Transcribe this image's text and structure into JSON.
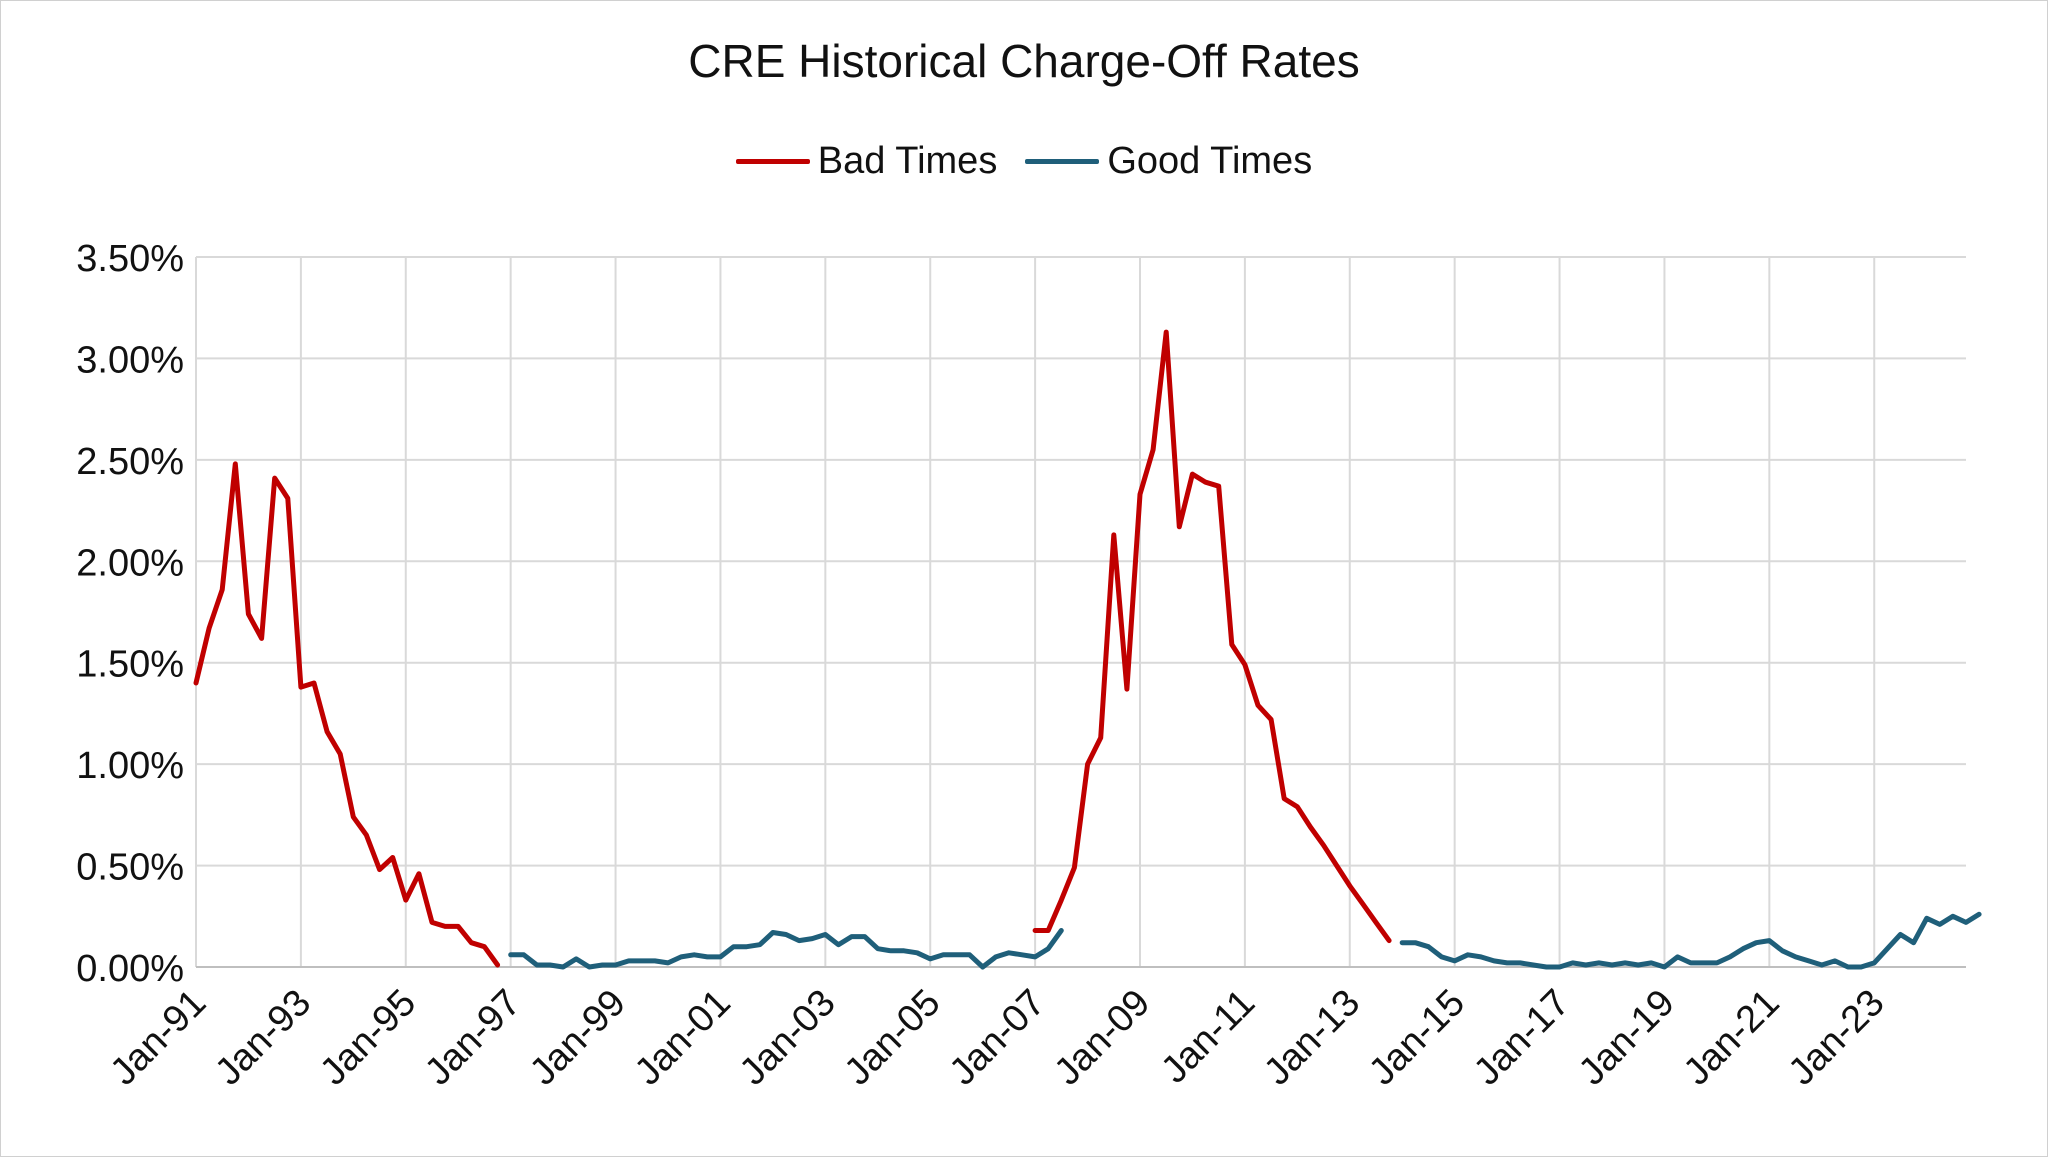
{
  "chart_data": {
    "type": "line",
    "title": "CRE Historical Charge-Off Rates",
    "xlabel": "",
    "ylabel": "",
    "ylim": [
      0,
      3.5
    ],
    "y_ticks": [
      "0.00%",
      "0.50%",
      "1.00%",
      "1.50%",
      "2.00%",
      "2.50%",
      "3.00%",
      "3.50%"
    ],
    "x_ticks": [
      "Jan-91",
      "Jan-93",
      "Jan-95",
      "Jan-97",
      "Jan-99",
      "Jan-01",
      "Jan-03",
      "Jan-05",
      "Jan-07",
      "Jan-09",
      "Jan-11",
      "Jan-13",
      "Jan-15",
      "Jan-17",
      "Jan-19",
      "Jan-21",
      "Jan-23"
    ],
    "x_range": [
      "1991Q1",
      "2024Q4"
    ],
    "grid": true,
    "legend_position": "top",
    "series": [
      {
        "name": "Bad Times",
        "color": "#c00000",
        "segments": [
          {
            "start": "1991Q1",
            "values": [
              1.4,
              1.67,
              1.86,
              2.48,
              1.74,
              1.62,
              2.41,
              2.31,
              1.38,
              1.4,
              1.16,
              1.05,
              0.74,
              0.65,
              0.48,
              0.54,
              0.33,
              0.46,
              0.22,
              0.2,
              0.2,
              0.12,
              0.1,
              0.01
            ]
          },
          {
            "start": "2007Q1",
            "values": [
              0.18,
              0.18,
              0.33,
              0.49,
              1.0,
              1.13,
              2.13,
              1.37,
              2.33,
              2.55,
              3.13,
              2.17,
              2.43,
              2.39,
              2.37,
              1.59,
              1.49,
              1.29,
              1.22,
              0.83,
              0.79,
              0.69,
              0.6,
              0.5,
              0.4,
              0.31,
              0.22,
              0.13
            ]
          }
        ]
      },
      {
        "name": "Good Times",
        "color": "#1f5f7a",
        "segments": [
          {
            "start": "1997Q1",
            "values": [
              0.06,
              0.06,
              0.01,
              0.01,
              0.0,
              0.04,
              0.0,
              0.01,
              0.01,
              0.03,
              0.03,
              0.03,
              0.02,
              0.05,
              0.06,
              0.05,
              0.05,
              0.1,
              0.1,
              0.11,
              0.17,
              0.16,
              0.13,
              0.14,
              0.16,
              0.11,
              0.15,
              0.15,
              0.09,
              0.08,
              0.08,
              0.07,
              0.04,
              0.06,
              0.06,
              0.06,
              0.0,
              0.05,
              0.07,
              0.06,
              0.05,
              0.09,
              0.18
            ]
          },
          {
            "start": "2014Q1",
            "values": [
              0.12,
              0.12,
              0.1,
              0.05,
              0.03,
              0.06,
              0.05,
              0.03,
              0.02,
              0.02,
              0.01,
              0.0,
              0.0,
              0.02,
              0.01,
              0.02,
              0.01,
              0.02,
              0.01,
              0.02,
              0.0,
              0.05,
              0.02,
              0.02,
              0.02,
              0.05,
              0.09,
              0.12,
              0.13,
              0.08,
              0.05,
              0.03,
              0.01,
              0.03,
              0.0,
              0.0,
              0.02,
              0.09,
              0.16,
              0.12,
              0.24,
              0.21,
              0.25,
              0.22,
              0.26
            ]
          }
        ]
      }
    ]
  }
}
